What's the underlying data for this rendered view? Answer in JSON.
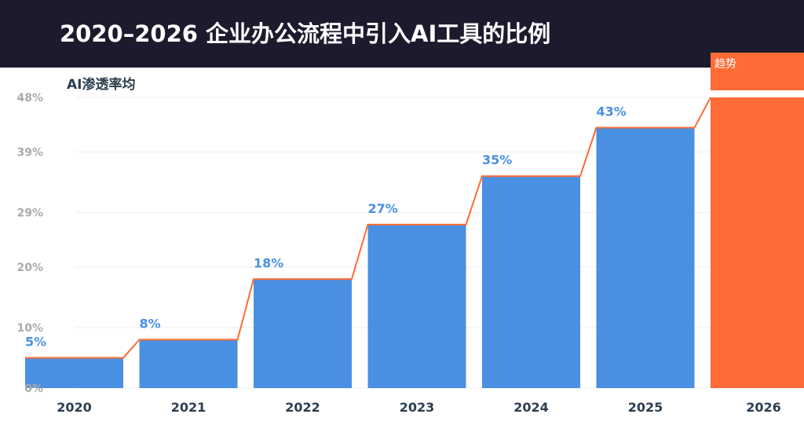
{
  "header": {
    "title": "2020–2026 企业办公流程中引入AI工具的比例"
  },
  "chart_data": {
    "type": "bar",
    "ylabel": "AI渗透率均",
    "categories": [
      "2020",
      "2021",
      "2022",
      "2023",
      "2024",
      "2025",
      "2026"
    ],
    "values": [
      5,
      8,
      18,
      27,
      35,
      43,
      50
    ],
    "value_labels": [
      "5%",
      "8%",
      "18%",
      "27%",
      "35%",
      "43%",
      ""
    ],
    "highlight_label": "趋势",
    "y_ticks": [
      "0%",
      "10%",
      "20%",
      "29%",
      "39%",
      "48%"
    ],
    "y_tick_values": [
      0,
      10,
      20,
      29,
      39,
      48
    ],
    "ylim": [
      0,
      48
    ],
    "grid": true,
    "colors": {
      "bar": "#4a90e2",
      "highlight": "#ff6b35",
      "line": "#ff6b35",
      "value_label": "#4a90e2",
      "axis_text": "#2c3e50",
      "tick_text": "#aaaaaa",
      "grid": "#eeeeee"
    }
  }
}
